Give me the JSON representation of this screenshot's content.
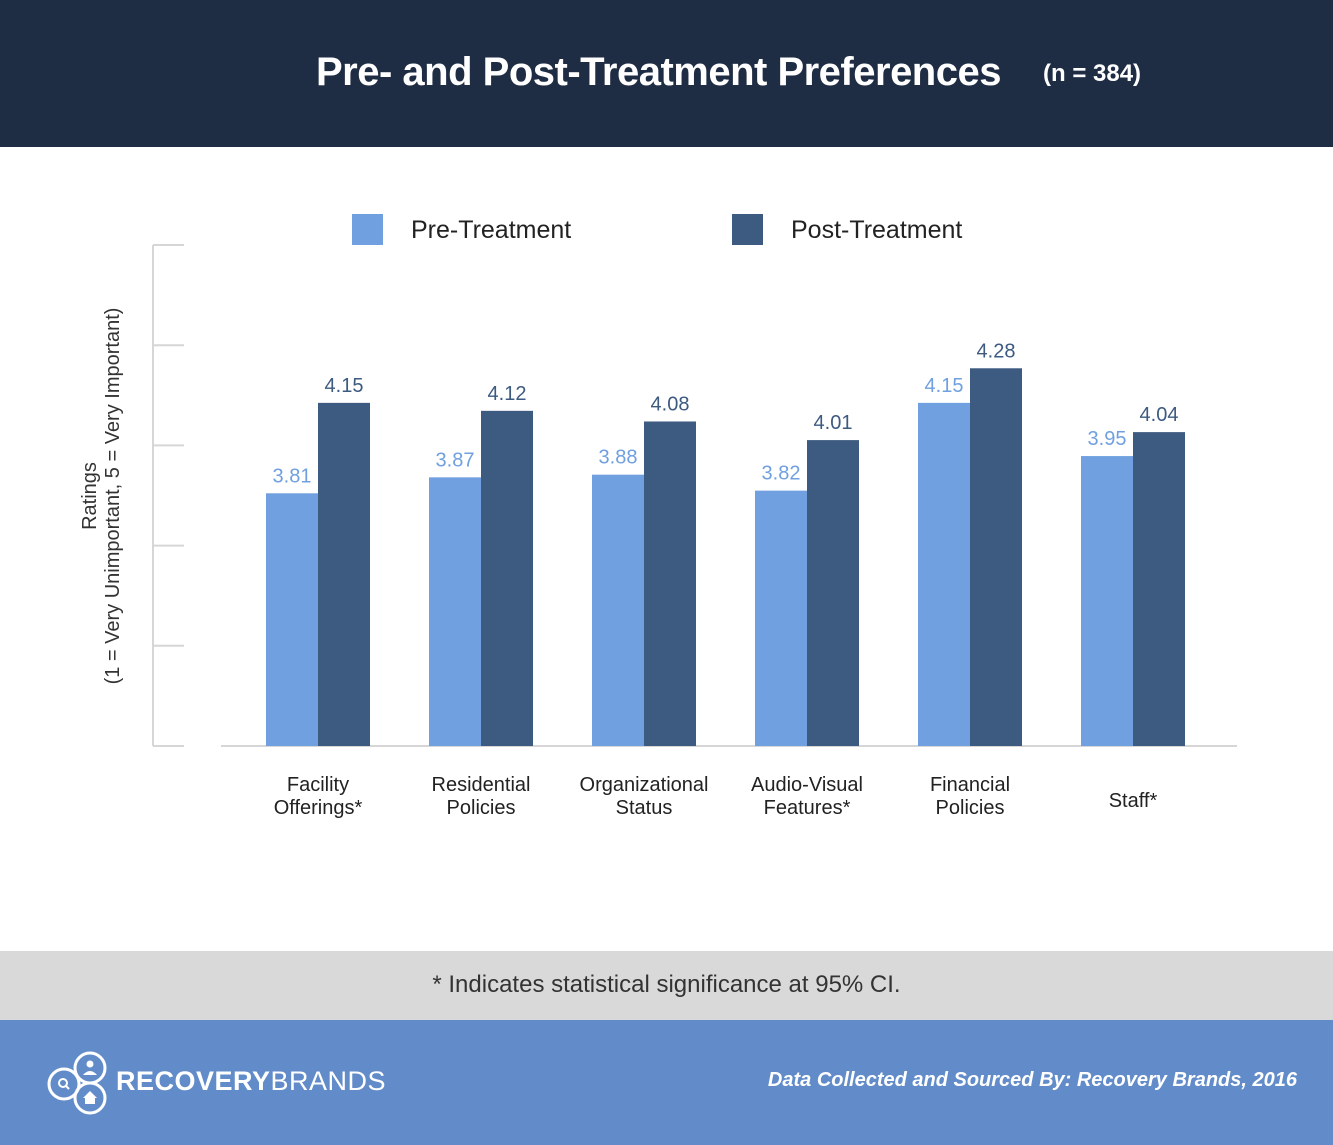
{
  "header": {
    "title": "Pre- and Post-Treatment Preferences",
    "subtitle": "(n = 384)"
  },
  "chart_data": {
    "type": "bar",
    "title": "Pre- and Post-Treatment Preferences",
    "subtitle": "(n = 384)",
    "ylabel_line1": "Ratings",
    "ylabel_line2": "(1 = Very Unimportant, 5 = Very Important)",
    "categories": [
      [
        "Facility",
        "Offerings*"
      ],
      [
        "Residential",
        "Policies"
      ],
      [
        "Organizational",
        "Status"
      ],
      [
        "Audio-Visual",
        "Features*"
      ],
      [
        "Financial",
        "Policies"
      ],
      [
        "Staff*"
      ]
    ],
    "series": [
      {
        "name": "Pre-Treatment",
        "color": "#70a0df",
        "values": [
          3.81,
          3.87,
          3.88,
          3.82,
          4.15,
          3.95
        ]
      },
      {
        "name": "Post-Treatment",
        "color": "#3d5a80",
        "values": [
          4.15,
          4.12,
          4.08,
          4.01,
          4.28,
          4.04
        ]
      }
    ],
    "legend": "top-center",
    "grid": false
  },
  "note": "* Indicates statistical significance at 95% CI.",
  "footer": {
    "brand_bold": "RECOVERY",
    "brand_light": "BRANDS",
    "source": "Data Collected and Sourced By: Recovery Brands, 2016"
  },
  "colors": {
    "header_bg": "#1f2d44",
    "footer_bg": "#628cc9",
    "note_bg": "#d9d9d9"
  }
}
